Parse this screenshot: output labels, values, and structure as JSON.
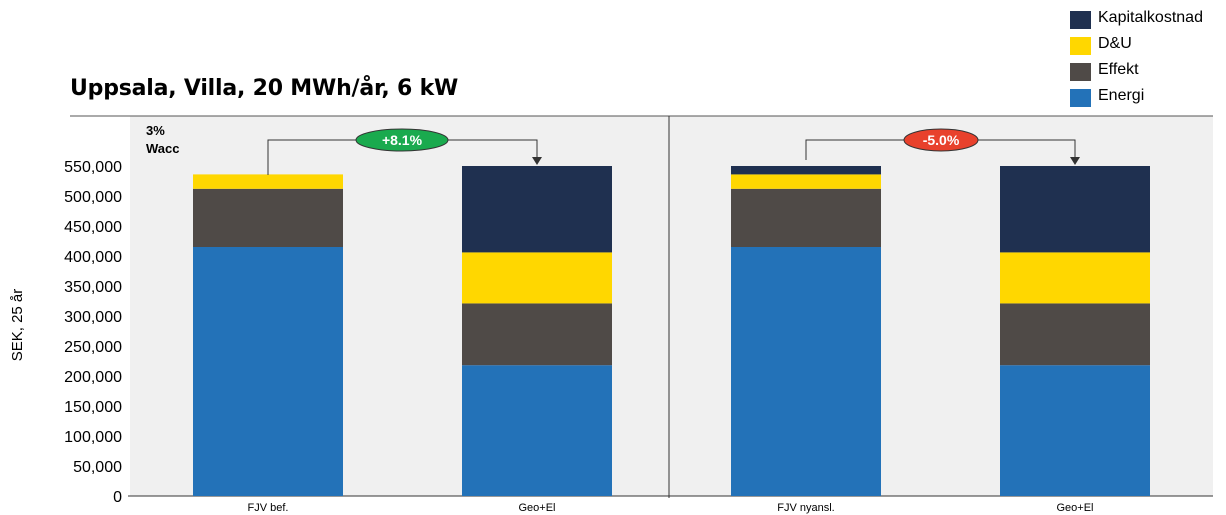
{
  "title": "Uppsala, Villa, 20 MWh/år, 6 kW",
  "legend": [
    {
      "name": "Kapitalkostnad",
      "color": "#1f3050"
    },
    {
      "name": "D&U",
      "color": "#ffd700"
    },
    {
      "name": "Effekt",
      "color": "#4f4a47"
    },
    {
      "name": "Energi",
      "color": "#2372b8"
    }
  ],
  "annotations": {
    "wacc_line1": "3%",
    "wacc_line2": "Wacc",
    "left_badge": {
      "text": "+8.1%",
      "color": "#1aaa4e"
    },
    "right_badge": {
      "text": "-5.0%",
      "color": "#e8412c"
    }
  },
  "chart_data": {
    "type": "bar",
    "stacked": true,
    "ylabel": "SEK, 25 år",
    "xlabel": "",
    "ylim": [
      0,
      550000
    ],
    "yticks": [
      0,
      50000,
      100000,
      150000,
      200000,
      250000,
      300000,
      350000,
      400000,
      450000,
      500000,
      550000
    ],
    "ytick_labels": [
      "0",
      "50,000",
      "100,000",
      "150,000",
      "200,000",
      "250,000",
      "300,000",
      "350,000",
      "400,000",
      "450,000",
      "500,000",
      "550,000"
    ],
    "categories": [
      "FJV bef.",
      "Geo+El",
      "FJV nyansl.",
      "Geo+El"
    ],
    "series": [
      {
        "name": "Energi",
        "color": "#2372b8",
        "values": [
          415000,
          218000,
          415000,
          218000
        ]
      },
      {
        "name": "Effekt",
        "color": "#4f4a47",
        "values": [
          97000,
          103000,
          97000,
          103000
        ]
      },
      {
        "name": "D&U",
        "color": "#ffd700",
        "values": [
          24000,
          85000,
          24000,
          85000
        ]
      },
      {
        "name": "Kapitalkostnad",
        "color": "#1f3050",
        "values": [
          0,
          144000,
          14000,
          144000
        ]
      }
    ],
    "grid": false,
    "legend_position": "top-right"
  }
}
